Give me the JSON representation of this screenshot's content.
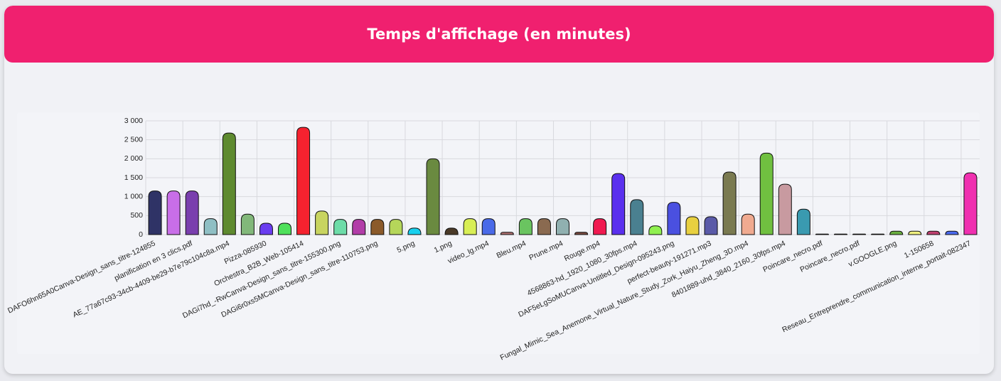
{
  "header": {
    "title": "Temps d'affichage (en minutes)"
  },
  "chart_data": {
    "type": "bar",
    "categories": [
      "DAFO6hn65A0Canva-Design_sans_titre-124855",
      null,
      "planification en 3 clics.pdf",
      null,
      "AE_77a67c93-34cb-4409-be29-b7e79c104c8a.mp4",
      null,
      "Pizza-085930",
      null,
      "Orchestra_B2B_Web-105414",
      null,
      "DAGi7hd_-RwCanva-Design_sans_titre-155300.png",
      null,
      "DAGi6r0xs5MCanva-Design_sans_titre-110753.png",
      null,
      "5.png",
      null,
      "1.png",
      null,
      "video_lg.mp4",
      null,
      "Bleu.mp4",
      null,
      "Prune.mp4",
      null,
      "Rouge.mp4",
      null,
      "4568863-hd_1920_1080_30fps.mp4",
      null,
      "DAF5eLgSoMUCanva-Untitled_Design-095243.png",
      null,
      "perfect-beauty-191271.mp3",
      null,
      "Fungal_Mimic_Sea_Anemone_Virtual_Nature_Study_Zork_Haiyu_Zheng_3D.mp4",
      null,
      "8401889-uhd_3840_2160_30fps.mp4",
      null,
      "Poincare_necro.pdf",
      null,
      "Poincare_necro.pdf",
      null,
      "v.GOOGLE.png",
      null,
      "1-150658",
      null,
      "Reseau_Entreprendre_communication_interne_portait-082347"
    ],
    "values": [
      1150,
      1150,
      1150,
      420,
      2680,
      540,
      300,
      300,
      2830,
      620,
      400,
      400,
      400,
      400,
      170,
      2000,
      170,
      420,
      420,
      60,
      420,
      420,
      420,
      60,
      420,
      1610,
      920,
      230,
      850,
      470,
      470,
      1650,
      540,
      2150,
      1330,
      670,
      15,
      15,
      15,
      15,
      90,
      90,
      90,
      90,
      1630
    ],
    "colors": [
      "#2f3366",
      "#c86ee8",
      "#7a3fae",
      "#8fbfc4",
      "#5e8a2f",
      "#82b87a",
      "#6a3df0",
      "#4ee05a",
      "#f5222f",
      "#c8d460",
      "#6ddca8",
      "#b23da8",
      "#8b5a2a",
      "#b5d65a",
      "#18d0ee",
      "#6a8a40",
      "#4a3a28",
      "#d8ee55",
      "#4a6ae8",
      "#b07070",
      "#6ac460",
      "#8a6a50",
      "#90b0b0",
      "#7a4a40",
      "#f01a50",
      "#5a30ee",
      "#4a8090",
      "#90f050",
      "#4a50e0",
      "#e8d040",
      "#5a5aa8",
      "#7a7a50",
      "#f0aa90",
      "#70c040",
      "#c89aa0",
      "#3a9ab0",
      "#c0b0a0",
      "#b0b0b0",
      "#a0a0a0",
      "#a0a8b0",
      "#6ab040",
      "#f0f080",
      "#c04070",
      "#4a6af0",
      "#f030b0"
    ],
    "ylim": [
      0,
      3000
    ],
    "yticks": [
      0,
      500,
      {
        "value": 1000,
        "label": "1 000"
      },
      {
        "value": 1500,
        "label": "1 500"
      },
      {
        "value": 2000,
        "label": "2 000"
      },
      {
        "value": 2500,
        "label": "2 500"
      },
      {
        "value": 3000,
        "label": "3 000"
      }
    ],
    "grid": true
  }
}
